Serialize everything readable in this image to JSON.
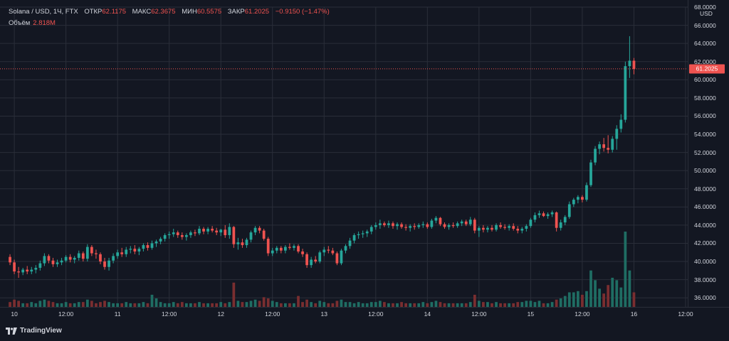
{
  "legend": {
    "symbol": "Solana / USD, 1Ч, FTX",
    "open_label": "ОТКР",
    "open": "62.1175",
    "high_label": "МАКС",
    "high": "62.3675",
    "low_label": "МИН",
    "low": "60.5575",
    "close_label": "ЗАКР",
    "close": "61.2025",
    "change": "−0.9150 (−1.47%)"
  },
  "volume_legend": {
    "label": "Объём",
    "value": "2.818M"
  },
  "axis_unit": "USD",
  "current_price": 61.2025,
  "current_price_label": "61.2025",
  "brand": "TradingView",
  "colors": {
    "background": "#131722",
    "up": "#26a69a",
    "down": "#ef5350",
    "up_volume": "#1f6d63",
    "down_volume": "#7a2e30",
    "grid": "#2a2e39",
    "text": "#d1d4dc"
  },
  "chart_data": {
    "type": "candlestick",
    "title": "Solana / USD, 1Ч, FTX",
    "ylabel": "USD",
    "ylim": [
      35,
      68
    ],
    "x_range": [
      0,
      146
    ],
    "y_ticks": [
      "36.0000",
      "38.0000",
      "40.0000",
      "42.0000",
      "44.0000",
      "46.0000",
      "48.0000",
      "50.0000",
      "52.0000",
      "54.0000",
      "56.0000",
      "58.0000",
      "60.0000",
      "62.0000",
      "64.0000",
      "66.0000",
      "68.0000"
    ],
    "x_ticks": [
      {
        "index": 1,
        "label": "10"
      },
      {
        "index": 13,
        "label": "12:00"
      },
      {
        "index": 25,
        "label": "11"
      },
      {
        "index": 37,
        "label": "12:00"
      },
      {
        "index": 49,
        "label": "12"
      },
      {
        "index": 61,
        "label": "12:00"
      },
      {
        "index": 73,
        "label": "13"
      },
      {
        "index": 85,
        "label": "12:00"
      },
      {
        "index": 97,
        "label": "14"
      },
      {
        "index": 109,
        "label": "12:00"
      },
      {
        "index": 121,
        "label": "15"
      },
      {
        "index": 133,
        "label": "12:00"
      },
      {
        "index": 145,
        "label": "16"
      },
      {
        "index": 157,
        "label": "12:00"
      }
    ],
    "candles": [
      {
        "o": 40.5,
        "h": 40.8,
        "l": 39.6,
        "c": 39.9,
        "v": 4
      },
      {
        "o": 39.9,
        "h": 40.2,
        "l": 38.6,
        "c": 38.9,
        "v": 6
      },
      {
        "o": 38.9,
        "h": 39.4,
        "l": 38.2,
        "c": 38.8,
        "v": 5
      },
      {
        "o": 38.8,
        "h": 39.3,
        "l": 38.5,
        "c": 39.1,
        "v": 3
      },
      {
        "o": 39.1,
        "h": 39.5,
        "l": 38.6,
        "c": 38.9,
        "v": 3
      },
      {
        "o": 38.9,
        "h": 39.4,
        "l": 38.6,
        "c": 39.1,
        "v": 4
      },
      {
        "o": 39.1,
        "h": 39.6,
        "l": 38.7,
        "c": 39.3,
        "v": 3
      },
      {
        "o": 39.3,
        "h": 40.1,
        "l": 39.0,
        "c": 39.8,
        "v": 5
      },
      {
        "o": 39.8,
        "h": 40.9,
        "l": 39.5,
        "c": 40.6,
        "v": 6
      },
      {
        "o": 40.6,
        "h": 40.8,
        "l": 39.8,
        "c": 40.1,
        "v": 5
      },
      {
        "o": 40.1,
        "h": 40.4,
        "l": 39.4,
        "c": 39.7,
        "v": 4
      },
      {
        "o": 39.7,
        "h": 40.2,
        "l": 39.4,
        "c": 39.9,
        "v": 3
      },
      {
        "o": 39.9,
        "h": 40.4,
        "l": 39.6,
        "c": 40.1,
        "v": 3
      },
      {
        "o": 40.1,
        "h": 40.7,
        "l": 39.9,
        "c": 40.5,
        "v": 4
      },
      {
        "o": 40.5,
        "h": 40.8,
        "l": 39.9,
        "c": 40.2,
        "v": 3
      },
      {
        "o": 40.2,
        "h": 40.6,
        "l": 39.8,
        "c": 40.4,
        "v": 3
      },
      {
        "o": 40.4,
        "h": 41.2,
        "l": 40.1,
        "c": 40.9,
        "v": 4
      },
      {
        "o": 40.9,
        "h": 41.1,
        "l": 40.0,
        "c": 40.3,
        "v": 4
      },
      {
        "o": 40.3,
        "h": 41.9,
        "l": 40.0,
        "c": 41.6,
        "v": 6
      },
      {
        "o": 41.6,
        "h": 41.8,
        "l": 40.6,
        "c": 40.9,
        "v": 5
      },
      {
        "o": 40.9,
        "h": 41.3,
        "l": 40.3,
        "c": 40.8,
        "v": 3
      },
      {
        "o": 40.8,
        "h": 41.0,
        "l": 39.7,
        "c": 40.0,
        "v": 4
      },
      {
        "o": 40.0,
        "h": 40.4,
        "l": 39.1,
        "c": 39.4,
        "v": 5
      },
      {
        "o": 39.4,
        "h": 40.4,
        "l": 39.0,
        "c": 40.1,
        "v": 4
      },
      {
        "o": 40.1,
        "h": 40.9,
        "l": 39.8,
        "c": 40.6,
        "v": 3
      },
      {
        "o": 40.6,
        "h": 41.3,
        "l": 40.3,
        "c": 41.0,
        "v": 3
      },
      {
        "o": 41.0,
        "h": 41.5,
        "l": 40.5,
        "c": 40.8,
        "v": 3
      },
      {
        "o": 40.8,
        "h": 41.6,
        "l": 40.5,
        "c": 41.3,
        "v": 4
      },
      {
        "o": 41.3,
        "h": 41.7,
        "l": 40.9,
        "c": 41.4,
        "v": 3
      },
      {
        "o": 41.4,
        "h": 41.8,
        "l": 40.8,
        "c": 41.1,
        "v": 3
      },
      {
        "o": 41.1,
        "h": 41.6,
        "l": 40.7,
        "c": 41.4,
        "v": 3
      },
      {
        "o": 41.4,
        "h": 42.0,
        "l": 41.1,
        "c": 41.8,
        "v": 4
      },
      {
        "o": 41.8,
        "h": 42.1,
        "l": 41.2,
        "c": 41.5,
        "v": 3
      },
      {
        "o": 41.5,
        "h": 42.3,
        "l": 41.3,
        "c": 42.0,
        "v": 10
      },
      {
        "o": 42.0,
        "h": 42.4,
        "l": 41.6,
        "c": 42.2,
        "v": 7
      },
      {
        "o": 42.2,
        "h": 42.7,
        "l": 41.9,
        "c": 42.5,
        "v": 4
      },
      {
        "o": 42.5,
        "h": 43.1,
        "l": 42.2,
        "c": 42.9,
        "v": 3
      },
      {
        "o": 42.9,
        "h": 43.3,
        "l": 42.5,
        "c": 43.0,
        "v": 3
      },
      {
        "o": 43.0,
        "h": 43.6,
        "l": 42.7,
        "c": 43.2,
        "v": 4
      },
      {
        "o": 43.2,
        "h": 43.4,
        "l": 42.6,
        "c": 42.9,
        "v": 3
      },
      {
        "o": 42.9,
        "h": 43.2,
        "l": 42.4,
        "c": 42.7,
        "v": 4
      },
      {
        "o": 42.7,
        "h": 43.1,
        "l": 42.3,
        "c": 42.9,
        "v": 3
      },
      {
        "o": 42.9,
        "h": 43.4,
        "l": 42.6,
        "c": 43.2,
        "v": 3
      },
      {
        "o": 43.2,
        "h": 43.5,
        "l": 42.8,
        "c": 43.1,
        "v": 3
      },
      {
        "o": 43.1,
        "h": 43.9,
        "l": 42.9,
        "c": 43.6,
        "v": 4
      },
      {
        "o": 43.6,
        "h": 43.8,
        "l": 43.0,
        "c": 43.3,
        "v": 3
      },
      {
        "o": 43.3,
        "h": 43.8,
        "l": 43.0,
        "c": 43.6,
        "v": 3
      },
      {
        "o": 43.6,
        "h": 43.9,
        "l": 43.2,
        "c": 43.4,
        "v": 3
      },
      {
        "o": 43.4,
        "h": 43.7,
        "l": 42.9,
        "c": 43.2,
        "v": 3
      },
      {
        "o": 43.2,
        "h": 43.6,
        "l": 42.8,
        "c": 43.5,
        "v": 4
      },
      {
        "o": 43.5,
        "h": 44.0,
        "l": 42.6,
        "c": 42.9,
        "v": 3
      },
      {
        "o": 42.9,
        "h": 44.2,
        "l": 42.5,
        "c": 43.8,
        "v": 4
      },
      {
        "o": 43.8,
        "h": 43.9,
        "l": 41.5,
        "c": 41.9,
        "v": 20
      },
      {
        "o": 41.9,
        "h": 42.6,
        "l": 41.3,
        "c": 42.1,
        "v": 5
      },
      {
        "o": 42.1,
        "h": 42.5,
        "l": 41.5,
        "c": 41.8,
        "v": 4
      },
      {
        "o": 41.8,
        "h": 42.6,
        "l": 41.5,
        "c": 42.4,
        "v": 4
      },
      {
        "o": 42.4,
        "h": 43.4,
        "l": 42.1,
        "c": 43.2,
        "v": 5
      },
      {
        "o": 43.2,
        "h": 43.9,
        "l": 42.9,
        "c": 43.7,
        "v": 6
      },
      {
        "o": 43.7,
        "h": 43.9,
        "l": 43.1,
        "c": 43.4,
        "v": 5
      },
      {
        "o": 43.4,
        "h": 43.6,
        "l": 42.3,
        "c": 42.5,
        "v": 8
      },
      {
        "o": 42.5,
        "h": 42.7,
        "l": 40.6,
        "c": 40.9,
        "v": 7
      },
      {
        "o": 40.9,
        "h": 41.5,
        "l": 40.6,
        "c": 41.2,
        "v": 5
      },
      {
        "o": 41.2,
        "h": 41.7,
        "l": 40.9,
        "c": 41.5,
        "v": 4
      },
      {
        "o": 41.5,
        "h": 41.7,
        "l": 40.9,
        "c": 41.2,
        "v": 3
      },
      {
        "o": 41.2,
        "h": 41.8,
        "l": 40.9,
        "c": 41.6,
        "v": 3
      },
      {
        "o": 41.6,
        "h": 42.0,
        "l": 41.3,
        "c": 41.5,
        "v": 3
      },
      {
        "o": 41.5,
        "h": 41.9,
        "l": 41.2,
        "c": 41.7,
        "v": 3
      },
      {
        "o": 41.7,
        "h": 41.9,
        "l": 40.9,
        "c": 41.1,
        "v": 9
      },
      {
        "o": 41.1,
        "h": 41.4,
        "l": 40.5,
        "c": 40.8,
        "v": 4
      },
      {
        "o": 40.8,
        "h": 41.0,
        "l": 39.3,
        "c": 39.6,
        "v": 6
      },
      {
        "o": 39.6,
        "h": 40.5,
        "l": 39.3,
        "c": 40.2,
        "v": 4
      },
      {
        "o": 40.2,
        "h": 40.6,
        "l": 39.8,
        "c": 40.0,
        "v": 3
      },
      {
        "o": 40.0,
        "h": 41.2,
        "l": 39.8,
        "c": 41.0,
        "v": 5
      },
      {
        "o": 41.0,
        "h": 41.6,
        "l": 40.6,
        "c": 41.3,
        "v": 4
      },
      {
        "o": 41.3,
        "h": 41.7,
        "l": 40.9,
        "c": 41.2,
        "v": 3
      },
      {
        "o": 41.2,
        "h": 41.5,
        "l": 40.7,
        "c": 40.9,
        "v": 3
      },
      {
        "o": 40.9,
        "h": 41.1,
        "l": 39.6,
        "c": 39.8,
        "v": 5
      },
      {
        "o": 39.8,
        "h": 41.4,
        "l": 39.6,
        "c": 41.2,
        "v": 6
      },
      {
        "o": 41.2,
        "h": 41.9,
        "l": 40.9,
        "c": 41.7,
        "v": 4
      },
      {
        "o": 41.7,
        "h": 42.6,
        "l": 41.4,
        "c": 42.3,
        "v": 4
      },
      {
        "o": 42.3,
        "h": 43.1,
        "l": 42.0,
        "c": 42.9,
        "v": 3
      },
      {
        "o": 42.9,
        "h": 43.3,
        "l": 42.5,
        "c": 43.0,
        "v": 4
      },
      {
        "o": 43.0,
        "h": 43.4,
        "l": 42.6,
        "c": 43.1,
        "v": 3
      },
      {
        "o": 43.1,
        "h": 43.5,
        "l": 42.7,
        "c": 43.3,
        "v": 3
      },
      {
        "o": 43.3,
        "h": 44.0,
        "l": 43.0,
        "c": 43.8,
        "v": 4
      },
      {
        "o": 43.8,
        "h": 44.3,
        "l": 43.5,
        "c": 44.0,
        "v": 4
      },
      {
        "o": 44.0,
        "h": 44.6,
        "l": 43.6,
        "c": 44.2,
        "v": 5
      },
      {
        "o": 44.2,
        "h": 44.4,
        "l": 43.8,
        "c": 44.0,
        "v": 4
      },
      {
        "o": 44.0,
        "h": 44.5,
        "l": 43.7,
        "c": 44.2,
        "v": 3
      },
      {
        "o": 44.2,
        "h": 44.4,
        "l": 43.6,
        "c": 43.9,
        "v": 3
      },
      {
        "o": 43.9,
        "h": 44.3,
        "l": 43.5,
        "c": 44.1,
        "v": 3
      },
      {
        "o": 44.1,
        "h": 44.3,
        "l": 43.6,
        "c": 43.8,
        "v": 4
      },
      {
        "o": 43.8,
        "h": 44.1,
        "l": 43.4,
        "c": 43.7,
        "v": 3
      },
      {
        "o": 43.7,
        "h": 44.1,
        "l": 43.3,
        "c": 43.9,
        "v": 3
      },
      {
        "o": 43.9,
        "h": 44.2,
        "l": 43.5,
        "c": 43.8,
        "v": 3
      },
      {
        "o": 43.8,
        "h": 44.2,
        "l": 43.6,
        "c": 44.0,
        "v": 3
      },
      {
        "o": 44.0,
        "h": 44.4,
        "l": 43.7,
        "c": 44.1,
        "v": 4
      },
      {
        "o": 44.1,
        "h": 44.3,
        "l": 43.6,
        "c": 43.8,
        "v": 3
      },
      {
        "o": 43.8,
        "h": 44.7,
        "l": 43.6,
        "c": 44.5,
        "v": 4
      },
      {
        "o": 44.5,
        "h": 45.0,
        "l": 44.2,
        "c": 44.8,
        "v": 5
      },
      {
        "o": 44.8,
        "h": 44.9,
        "l": 43.9,
        "c": 44.1,
        "v": 4
      },
      {
        "o": 44.1,
        "h": 44.3,
        "l": 43.6,
        "c": 43.8,
        "v": 3
      },
      {
        "o": 43.8,
        "h": 44.2,
        "l": 43.5,
        "c": 44.0,
        "v": 3
      },
      {
        "o": 44.0,
        "h": 44.3,
        "l": 43.7,
        "c": 43.9,
        "v": 3
      },
      {
        "o": 43.9,
        "h": 44.4,
        "l": 43.7,
        "c": 44.2,
        "v": 3
      },
      {
        "o": 44.2,
        "h": 44.6,
        "l": 43.9,
        "c": 44.4,
        "v": 3
      },
      {
        "o": 44.4,
        "h": 44.6,
        "l": 43.9,
        "c": 44.1,
        "v": 3
      },
      {
        "o": 44.1,
        "h": 44.9,
        "l": 43.9,
        "c": 44.6,
        "v": 4
      },
      {
        "o": 44.6,
        "h": 44.8,
        "l": 43.1,
        "c": 43.4,
        "v": 10
      },
      {
        "o": 43.4,
        "h": 43.9,
        "l": 42.7,
        "c": 43.7,
        "v": 5
      },
      {
        "o": 43.7,
        "h": 44.0,
        "l": 43.2,
        "c": 43.5,
        "v": 4
      },
      {
        "o": 43.5,
        "h": 43.9,
        "l": 43.2,
        "c": 43.7,
        "v": 4
      },
      {
        "o": 43.7,
        "h": 44.0,
        "l": 43.3,
        "c": 43.5,
        "v": 3
      },
      {
        "o": 43.5,
        "h": 44.2,
        "l": 43.3,
        "c": 44.0,
        "v": 4
      },
      {
        "o": 44.0,
        "h": 44.3,
        "l": 43.6,
        "c": 43.8,
        "v": 3
      },
      {
        "o": 43.8,
        "h": 44.1,
        "l": 43.5,
        "c": 43.7,
        "v": 3
      },
      {
        "o": 43.7,
        "h": 44.1,
        "l": 43.4,
        "c": 43.9,
        "v": 3
      },
      {
        "o": 43.9,
        "h": 44.2,
        "l": 43.4,
        "c": 43.6,
        "v": 3
      },
      {
        "o": 43.6,
        "h": 43.9,
        "l": 43.1,
        "c": 43.4,
        "v": 4
      },
      {
        "o": 43.4,
        "h": 43.8,
        "l": 43.1,
        "c": 43.6,
        "v": 4
      },
      {
        "o": 43.6,
        "h": 44.1,
        "l": 43.3,
        "c": 43.9,
        "v": 5
      },
      {
        "o": 43.9,
        "h": 44.8,
        "l": 43.7,
        "c": 44.6,
        "v": 5
      },
      {
        "o": 44.6,
        "h": 45.4,
        "l": 44.3,
        "c": 45.1,
        "v": 4
      },
      {
        "o": 45.1,
        "h": 45.6,
        "l": 44.8,
        "c": 45.3,
        "v": 5
      },
      {
        "o": 45.3,
        "h": 45.5,
        "l": 44.9,
        "c": 45.0,
        "v": 3
      },
      {
        "o": 45.0,
        "h": 45.4,
        "l": 44.7,
        "c": 45.2,
        "v": 3
      },
      {
        "o": 45.2,
        "h": 45.6,
        "l": 44.9,
        "c": 45.4,
        "v": 4
      },
      {
        "o": 45.4,
        "h": 45.5,
        "l": 43.3,
        "c": 43.7,
        "v": 6
      },
      {
        "o": 43.7,
        "h": 44.6,
        "l": 43.4,
        "c": 44.3,
        "v": 7
      },
      {
        "o": 44.3,
        "h": 45.1,
        "l": 44.0,
        "c": 44.9,
        "v": 9
      },
      {
        "o": 44.9,
        "h": 46.6,
        "l": 44.7,
        "c": 46.3,
        "v": 12
      },
      {
        "o": 46.3,
        "h": 47.0,
        "l": 46.0,
        "c": 46.8,
        "v": 12
      },
      {
        "o": 46.8,
        "h": 47.3,
        "l": 46.4,
        "c": 47.1,
        "v": 13
      },
      {
        "o": 47.1,
        "h": 47.3,
        "l": 46.5,
        "c": 46.8,
        "v": 10
      },
      {
        "o": 46.8,
        "h": 48.7,
        "l": 46.6,
        "c": 48.4,
        "v": 13
      },
      {
        "o": 48.4,
        "h": 51.2,
        "l": 48.2,
        "c": 50.9,
        "v": 30
      },
      {
        "o": 50.9,
        "h": 52.7,
        "l": 50.6,
        "c": 52.4,
        "v": 22
      },
      {
        "o": 52.4,
        "h": 53.2,
        "l": 51.8,
        "c": 52.9,
        "v": 15
      },
      {
        "o": 52.9,
        "h": 53.6,
        "l": 52.1,
        "c": 52.5,
        "v": 11
      },
      {
        "o": 52.5,
        "h": 53.9,
        "l": 51.9,
        "c": 52.3,
        "v": 18
      },
      {
        "o": 52.3,
        "h": 53.8,
        "l": 52.0,
        "c": 53.5,
        "v": 24
      },
      {
        "o": 53.5,
        "h": 55.0,
        "l": 52.3,
        "c": 54.6,
        "v": 22
      },
      {
        "o": 54.6,
        "h": 56.2,
        "l": 54.2,
        "c": 55.6,
        "v": 16
      },
      {
        "o": 55.6,
        "h": 62.0,
        "l": 55.3,
        "c": 61.5,
        "v": 62
      },
      {
        "o": 61.5,
        "h": 64.8,
        "l": 60.2,
        "c": 62.1,
        "v": 30
      },
      {
        "o": 62.1,
        "h": 62.4,
        "l": 60.6,
        "c": 61.2,
        "v": 12
      }
    ]
  }
}
